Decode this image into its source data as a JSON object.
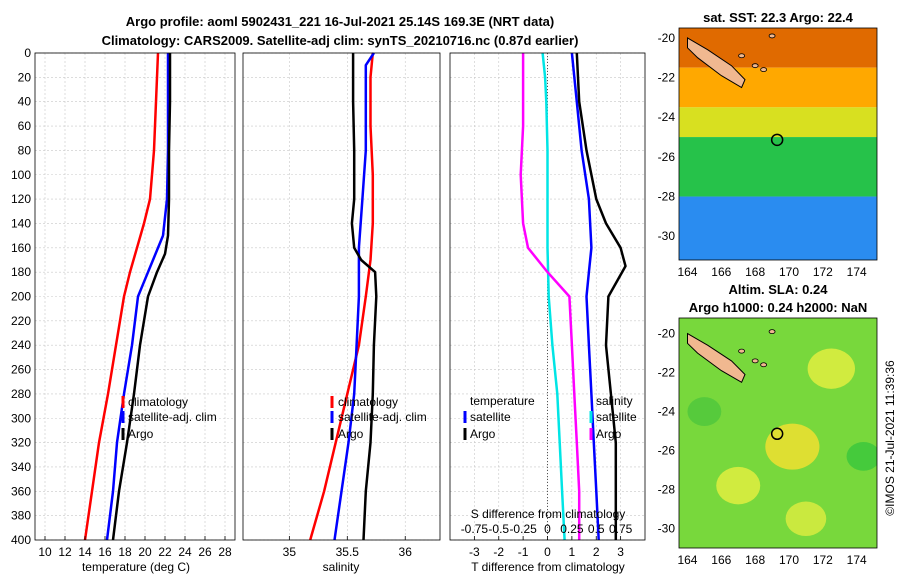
{
  "figure": {
    "title_line1": "Argo profile: aoml 5902431_221 16-Jul-2021 25.14S 169.3E (NRT data)",
    "title_line2": "Climatology: CARS2009. Satellite-adj clim: synTS_20210716.nc (0.87d earlier)",
    "watermark": "©IMOS 21-Jul-2021 11:39:36",
    "colors": {
      "climatology": "#ff0000",
      "satellite": "#0000ff",
      "argo": "#000000",
      "temp_diff": "#00e5e5",
      "sal_diff": "#ff00ff",
      "land": "#f0b890"
    }
  },
  "chart_data": [
    {
      "id": "temperature",
      "type": "line",
      "xlabel": "temperature (deg C)",
      "ylabel": "depth",
      "xlim": [
        9,
        29
      ],
      "ylim": [
        0,
        400
      ],
      "xticks": [
        10,
        12,
        14,
        16,
        18,
        20,
        22,
        24,
        26,
        28
      ],
      "yticks": [
        0,
        20,
        40,
        60,
        80,
        100,
        120,
        140,
        160,
        180,
        200,
        220,
        240,
        260,
        280,
        300,
        320,
        340,
        360,
        380,
        400
      ],
      "legend": {
        "position": "lower-right",
        "entries": [
          "climatology",
          "satellite-adj. clim",
          "Argo"
        ]
      },
      "series": [
        {
          "name": "climatology",
          "color": "#ff0000",
          "depth": [
            0,
            40,
            80,
            120,
            140,
            160,
            180,
            200,
            240,
            280,
            320,
            360,
            400
          ],
          "values": [
            21.3,
            21.1,
            20.9,
            20.5,
            19.9,
            19.2,
            18.5,
            17.9,
            17.1,
            16.3,
            15.4,
            14.7,
            14.0
          ]
        },
        {
          "name": "satellite-adj. clim",
          "color": "#0000ff",
          "depth": [
            0,
            40,
            80,
            120,
            150,
            170,
            190,
            200,
            240,
            280,
            320,
            360,
            400
          ],
          "values": [
            22.3,
            22.3,
            22.3,
            22.2,
            21.8,
            20.8,
            19.8,
            19.3,
            18.7,
            17.9,
            17.2,
            16.8,
            16.2
          ]
        },
        {
          "name": "Argo",
          "color": "#000000",
          "depth": [
            0,
            40,
            80,
            120,
            150,
            165,
            180,
            200,
            240,
            280,
            320,
            360,
            400
          ],
          "values": [
            22.5,
            22.5,
            22.4,
            22.4,
            22.3,
            22.0,
            21.2,
            20.3,
            19.5,
            18.9,
            18.2,
            17.4,
            16.8
          ]
        }
      ]
    },
    {
      "id": "salinity",
      "type": "line",
      "xlabel": "salinity",
      "ylabel": "depth",
      "xlim": [
        34.6,
        36.3
      ],
      "ylim": [
        0,
        400
      ],
      "xticks": [
        35,
        35.5,
        36
      ],
      "legend": {
        "position": "lower-right",
        "entries": [
          "climatology",
          "satellite-adj. clim",
          "Argo"
        ]
      },
      "series": [
        {
          "name": "climatology",
          "color": "#ff0000",
          "depth": [
            0,
            20,
            60,
            100,
            140,
            170,
            200,
            240,
            280,
            320,
            360,
            400
          ],
          "values": [
            35.72,
            35.7,
            35.7,
            35.72,
            35.72,
            35.7,
            35.66,
            35.6,
            35.5,
            35.4,
            35.3,
            35.18
          ]
        },
        {
          "name": "satellite-adj. clim",
          "color": "#0000ff",
          "depth": [
            0,
            10,
            40,
            80,
            120,
            160,
            200,
            240,
            280,
            320,
            360,
            400
          ],
          "values": [
            35.73,
            35.66,
            35.66,
            35.66,
            35.63,
            35.6,
            35.6,
            35.58,
            35.56,
            35.51,
            35.45,
            35.39
          ]
        },
        {
          "name": "Argo",
          "color": "#000000",
          "depth": [
            0,
            40,
            80,
            120,
            140,
            160,
            170,
            180,
            200,
            240,
            280,
            320,
            360,
            400
          ],
          "values": [
            35.55,
            35.55,
            35.56,
            35.56,
            35.54,
            35.56,
            35.62,
            35.74,
            35.75,
            35.73,
            35.72,
            35.7,
            35.66,
            35.64
          ]
        }
      ]
    },
    {
      "id": "difference",
      "type": "line",
      "xlabel": "T difference from climatology",
      "xlabel_top": "S difference from climatology",
      "xlim": [
        -4,
        4
      ],
      "ylim": [
        0,
        400
      ],
      "xticks": [
        -3,
        -2,
        -1,
        0,
        1,
        2,
        3
      ],
      "xticks_s": [
        "-0.75",
        "-0.5",
        "-0.25",
        "0",
        "0.25",
        "0.5",
        "0.75"
      ],
      "legend_left": {
        "title": "temperature",
        "entries": [
          "satellite",
          "Argo"
        ]
      },
      "legend_right": {
        "title": "salinity",
        "entries": [
          "satellite",
          "Argo"
        ]
      },
      "series": [
        {
          "name": "temperature satellite",
          "color": "#0000ff",
          "depth": [
            0,
            40,
            80,
            120,
            160,
            180,
            200,
            240,
            280,
            320,
            360,
            400
          ],
          "values": [
            1.0,
            1.2,
            1.4,
            1.7,
            1.8,
            1.7,
            1.6,
            1.7,
            1.8,
            1.9,
            2.0,
            2.1
          ]
        },
        {
          "name": "temperature Argo",
          "color": "#000000",
          "depth": [
            0,
            40,
            80,
            120,
            140,
            160,
            175,
            200,
            240,
            280,
            320,
            360,
            400
          ],
          "values": [
            1.2,
            1.3,
            1.6,
            2.0,
            2.4,
            3.0,
            3.2,
            2.5,
            2.4,
            2.6,
            2.8,
            2.8,
            2.8
          ]
        },
        {
          "name": "salinity satellite",
          "color": "#00e5e5",
          "depth": [
            0,
            20,
            40,
            80,
            120,
            160,
            200,
            240,
            280,
            320,
            360,
            400
          ],
          "values": [
            -0.2,
            -0.1,
            -0.05,
            0.0,
            0.0,
            0.0,
            0.05,
            0.2,
            0.4,
            0.5,
            0.6,
            0.7
          ]
        },
        {
          "name": "salinity Argo",
          "color": "#ff00ff",
          "depth": [
            0,
            20,
            60,
            100,
            140,
            160,
            180,
            200,
            240,
            280,
            320,
            360,
            400
          ],
          "values": [
            -1.0,
            -1.0,
            -1.0,
            -1.1,
            -1.0,
            -0.8,
            0.0,
            0.9,
            1.0,
            1.1,
            1.2,
            1.3,
            1.3
          ]
        }
      ]
    },
    {
      "id": "sst_map",
      "type": "heatmap",
      "title": "sat. SST: 22.3 Argo: 22.4",
      "xticks": [
        164,
        166,
        168,
        170,
        172,
        174
      ],
      "yticks": [
        -20,
        -22,
        -24,
        -26,
        -28,
        -30
      ],
      "xlim": [
        163.5,
        175.2
      ],
      "ylim": [
        -31.2,
        -19.5
      ],
      "marker": {
        "lon": 169.3,
        "lat": -25.14
      },
      "bands": [
        {
          "lat_min": -21.5,
          "lat_max": -19.5,
          "color": "#e06a00"
        },
        {
          "lat_min": -23.5,
          "lat_max": -21.5,
          "color": "#ffa800"
        },
        {
          "lat_min": -25.0,
          "lat_max": -23.5,
          "color": "#d8e020"
        },
        {
          "lat_min": -28.0,
          "lat_max": -25.0,
          "color": "#26c24a"
        },
        {
          "lat_min": -31.2,
          "lat_max": -28.0,
          "color": "#2a8cf0"
        }
      ]
    },
    {
      "id": "sla_map",
      "type": "heatmap",
      "title_line1": "Altim. SLA: 0.24",
      "title_line2": "Argo h1000: 0.24 h2000: NaN",
      "xticks": [
        164,
        166,
        168,
        170,
        172,
        174
      ],
      "yticks": [
        -20,
        -22,
        -24,
        -26,
        -28,
        -30
      ],
      "xlim": [
        163.5,
        175.2
      ],
      "ylim": [
        -31.0,
        -19.2
      ],
      "marker": {
        "lon": 169.3,
        "lat": -25.14
      },
      "background_color": "#78d83c",
      "blobs": [
        {
          "lon": 170.2,
          "lat": -25.8,
          "r": 1.6,
          "color": "#f0e030"
        },
        {
          "lon": 167.0,
          "lat": -27.8,
          "r": 1.3,
          "color": "#e0ee40"
        },
        {
          "lon": 172.5,
          "lat": -21.8,
          "r": 1.4,
          "color": "#e0ee40"
        },
        {
          "lon": 171.0,
          "lat": -29.5,
          "r": 1.2,
          "color": "#d8ec40"
        },
        {
          "lon": 174.4,
          "lat": -26.3,
          "r": 1.0,
          "color": "#3cc83c"
        },
        {
          "lon": 165.0,
          "lat": -24.0,
          "r": 1.0,
          "color": "#50c83c"
        }
      ]
    }
  ]
}
